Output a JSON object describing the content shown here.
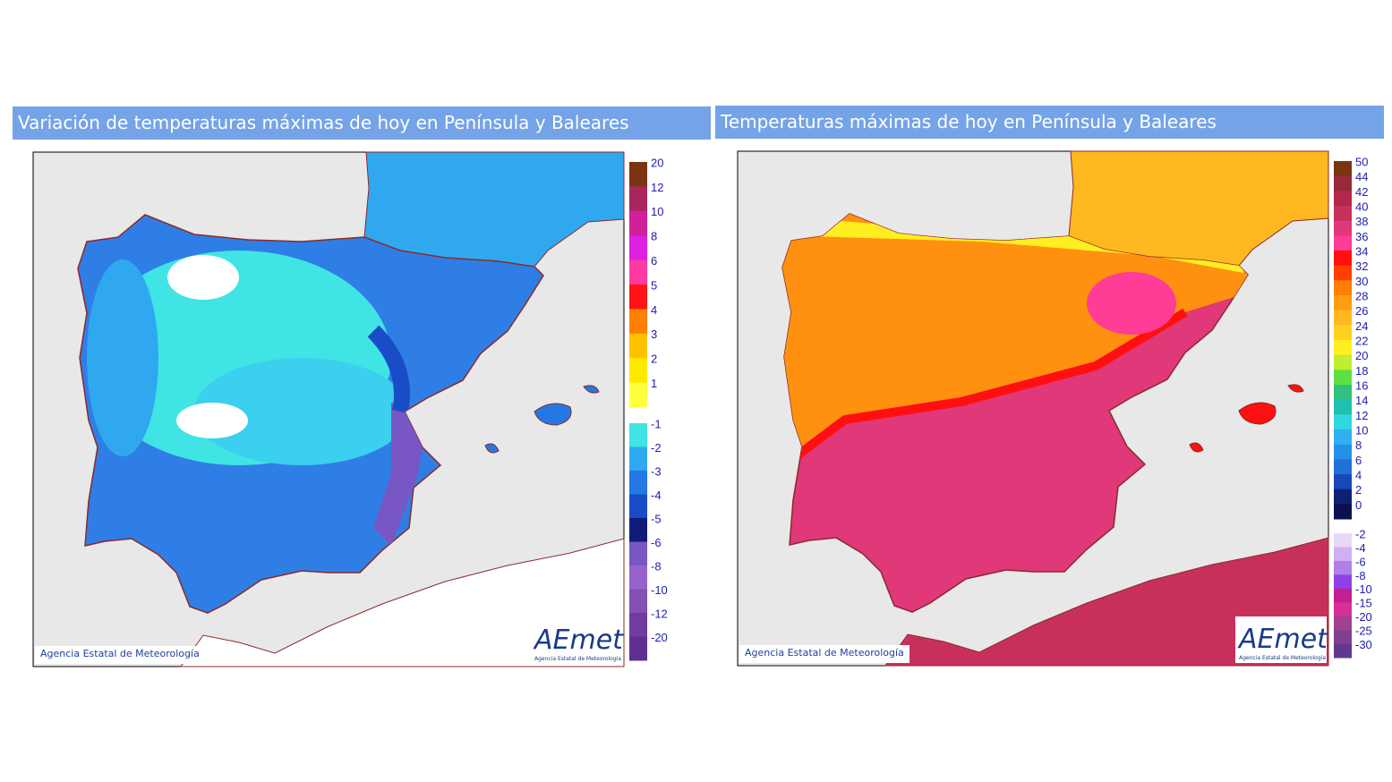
{
  "panels": [
    {
      "title": "Variación de temperaturas máximas de hoy en Península y Baleares",
      "legend_top": [
        {
          "label": "20",
          "color": "#7b3412"
        },
        {
          "label": "12",
          "color": "#a8265e"
        },
        {
          "label": "10",
          "color": "#d0209a"
        },
        {
          "label": "8",
          "color": "#e020e0"
        },
        {
          "label": "6",
          "color": "#ff3aa0"
        },
        {
          "label": "5",
          "color": "#ff1414"
        },
        {
          "label": "4",
          "color": "#ff8000"
        },
        {
          "label": "3",
          "color": "#ffc000"
        },
        {
          "label": "2",
          "color": "#ffe800"
        },
        {
          "label": "1",
          "color": "#ffff40"
        }
      ],
      "legend_bottom": [
        {
          "label": "-1",
          "color": "#40e4e4"
        },
        {
          "label": "-2",
          "color": "#30a8f0"
        },
        {
          "label": "-3",
          "color": "#2478e4"
        },
        {
          "label": "-4",
          "color": "#1a4cc8"
        },
        {
          "label": "-5",
          "color": "#101c78"
        },
        {
          "label": "-6",
          "color": "#7856c4"
        },
        {
          "label": "-8",
          "color": "#9464cc"
        },
        {
          "label": "-10",
          "color": "#8450b4"
        },
        {
          "label": "-12",
          "color": "#703ca0"
        },
        {
          "label": "-20",
          "color": "#603090"
        }
      ],
      "copyright": "Agencia Estatal de Meteorología",
      "logo": "AEmet",
      "logo_sub": "Agencia Estatal de Meteorología"
    },
    {
      "title": "Temperaturas máximas de hoy en Península y Baleares",
      "legend_top": [
        {
          "label": "50",
          "color": "#7b3412"
        },
        {
          "label": "44",
          "color": "#962a3c"
        },
        {
          "label": "42",
          "color": "#b0284c"
        },
        {
          "label": "40",
          "color": "#c8305c"
        },
        {
          "label": "38",
          "color": "#e03878"
        },
        {
          "label": "36",
          "color": "#ff3c96"
        },
        {
          "label": "34",
          "color": "#ff1010"
        },
        {
          "label": "32",
          "color": "#ff4000"
        },
        {
          "label": "30",
          "color": "#ff8000"
        },
        {
          "label": "28",
          "color": "#ff9c10"
        },
        {
          "label": "26",
          "color": "#ffb820"
        },
        {
          "label": "24",
          "color": "#ffd020"
        },
        {
          "label": "22",
          "color": "#ffee20"
        },
        {
          "label": "20",
          "color": "#c0ee30"
        },
        {
          "label": "18",
          "color": "#60e040"
        },
        {
          "label": "16",
          "color": "#30c080"
        },
        {
          "label": "14",
          "color": "#20c0b0"
        },
        {
          "label": "12",
          "color": "#30d8e0"
        },
        {
          "label": "10",
          "color": "#30b0f0"
        },
        {
          "label": "8",
          "color": "#2490e8"
        },
        {
          "label": "6",
          "color": "#2070d8"
        },
        {
          "label": "4",
          "color": "#1848b8"
        },
        {
          "label": "2",
          "color": "#102070"
        },
        {
          "label": "0",
          "color": "#0c1050"
        }
      ],
      "legend_bottom": [
        {
          "label": "-2",
          "color": "#e8d8f8"
        },
        {
          "label": "-4",
          "color": "#d0b0f0"
        },
        {
          "label": "-6",
          "color": "#b080e8"
        },
        {
          "label": "-8",
          "color": "#9040e8"
        },
        {
          "label": "-10",
          "color": "#c02090"
        },
        {
          "label": "-15",
          "color": "#d83098"
        },
        {
          "label": "-20",
          "color": "#a04090"
        },
        {
          "label": "-25",
          "color": "#804090"
        },
        {
          "label": "-30",
          "color": "#603890"
        }
      ],
      "copyright": "Agencia Estatal de Meteorología",
      "logo": "AEmet",
      "logo_sub": "Agencia Estatal de Meteorología"
    }
  ]
}
